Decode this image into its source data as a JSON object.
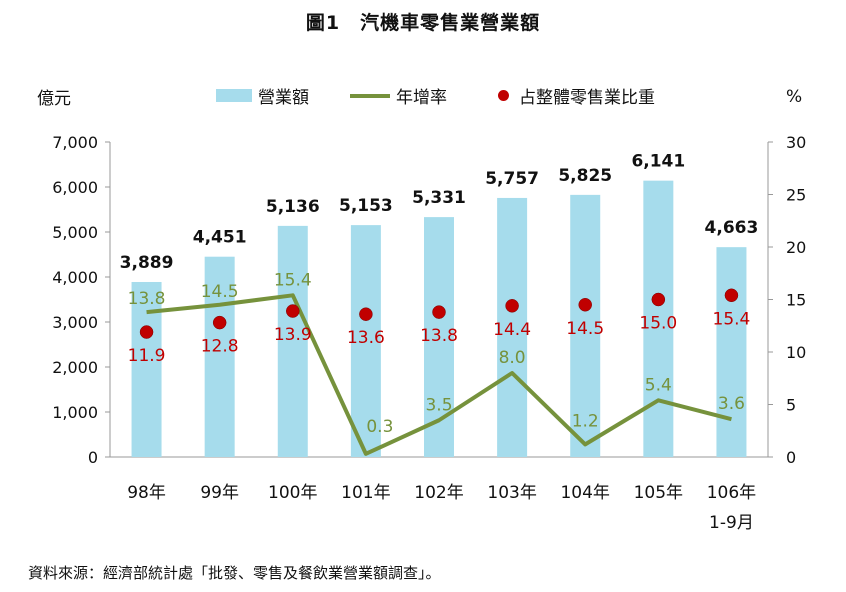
{
  "title": "圖1　汽機車零售業營業額",
  "source": "資料來源：經濟部統計處「批發、零售及餐飲業營業額調查」。",
  "chart_data": {
    "type": "bar",
    "categories": [
      "98年",
      "99年",
      "100年",
      "101年",
      "102年",
      "103年",
      "104年",
      "105年",
      "106年\n1-9月"
    ],
    "series": [
      {
        "name": "營業額",
        "type": "bar",
        "axis": "left",
        "color": "#A6DCEC",
        "values": [
          3889,
          4451,
          5136,
          5153,
          5331,
          5757,
          5825,
          6141,
          4663
        ],
        "labels": [
          "3,889",
          "4,451",
          "5,136",
          "5,153",
          "5,331",
          "5,757",
          "5,825",
          "6,141",
          "4,663"
        ]
      },
      {
        "name": "年增率",
        "type": "line",
        "axis": "right",
        "color": "#76923C",
        "values": [
          13.8,
          14.5,
          15.4,
          0.3,
          3.5,
          8.0,
          1.2,
          5.4,
          3.6
        ],
        "labels": [
          "13.8",
          "14.5",
          "15.4",
          "0.3",
          "3.5",
          "8.0",
          "1.2",
          "5.4",
          "3.6"
        ]
      },
      {
        "name": "占整體零售業比重",
        "type": "scatter",
        "axis": "right",
        "color": "#C00000",
        "values": [
          11.9,
          12.8,
          13.9,
          13.6,
          13.8,
          14.4,
          14.5,
          15.0,
          15.4
        ],
        "labels": [
          "11.9",
          "12.8",
          "13.9",
          "13.6",
          "13.8",
          "14.4",
          "14.5",
          "15.0",
          "15.4"
        ]
      }
    ],
    "ylabel": "億元",
    "y2label": "%",
    "ylim": [
      0,
      7000
    ],
    "y2lim": [
      0,
      30
    ],
    "yticks": [
      "0",
      "1,000",
      "2,000",
      "3,000",
      "4,000",
      "5,000",
      "6,000",
      "7,000"
    ],
    "y2ticks": [
      "0",
      "5",
      "10",
      "15",
      "20",
      "25",
      "30"
    ],
    "grid": false,
    "legend_position": "top"
  }
}
